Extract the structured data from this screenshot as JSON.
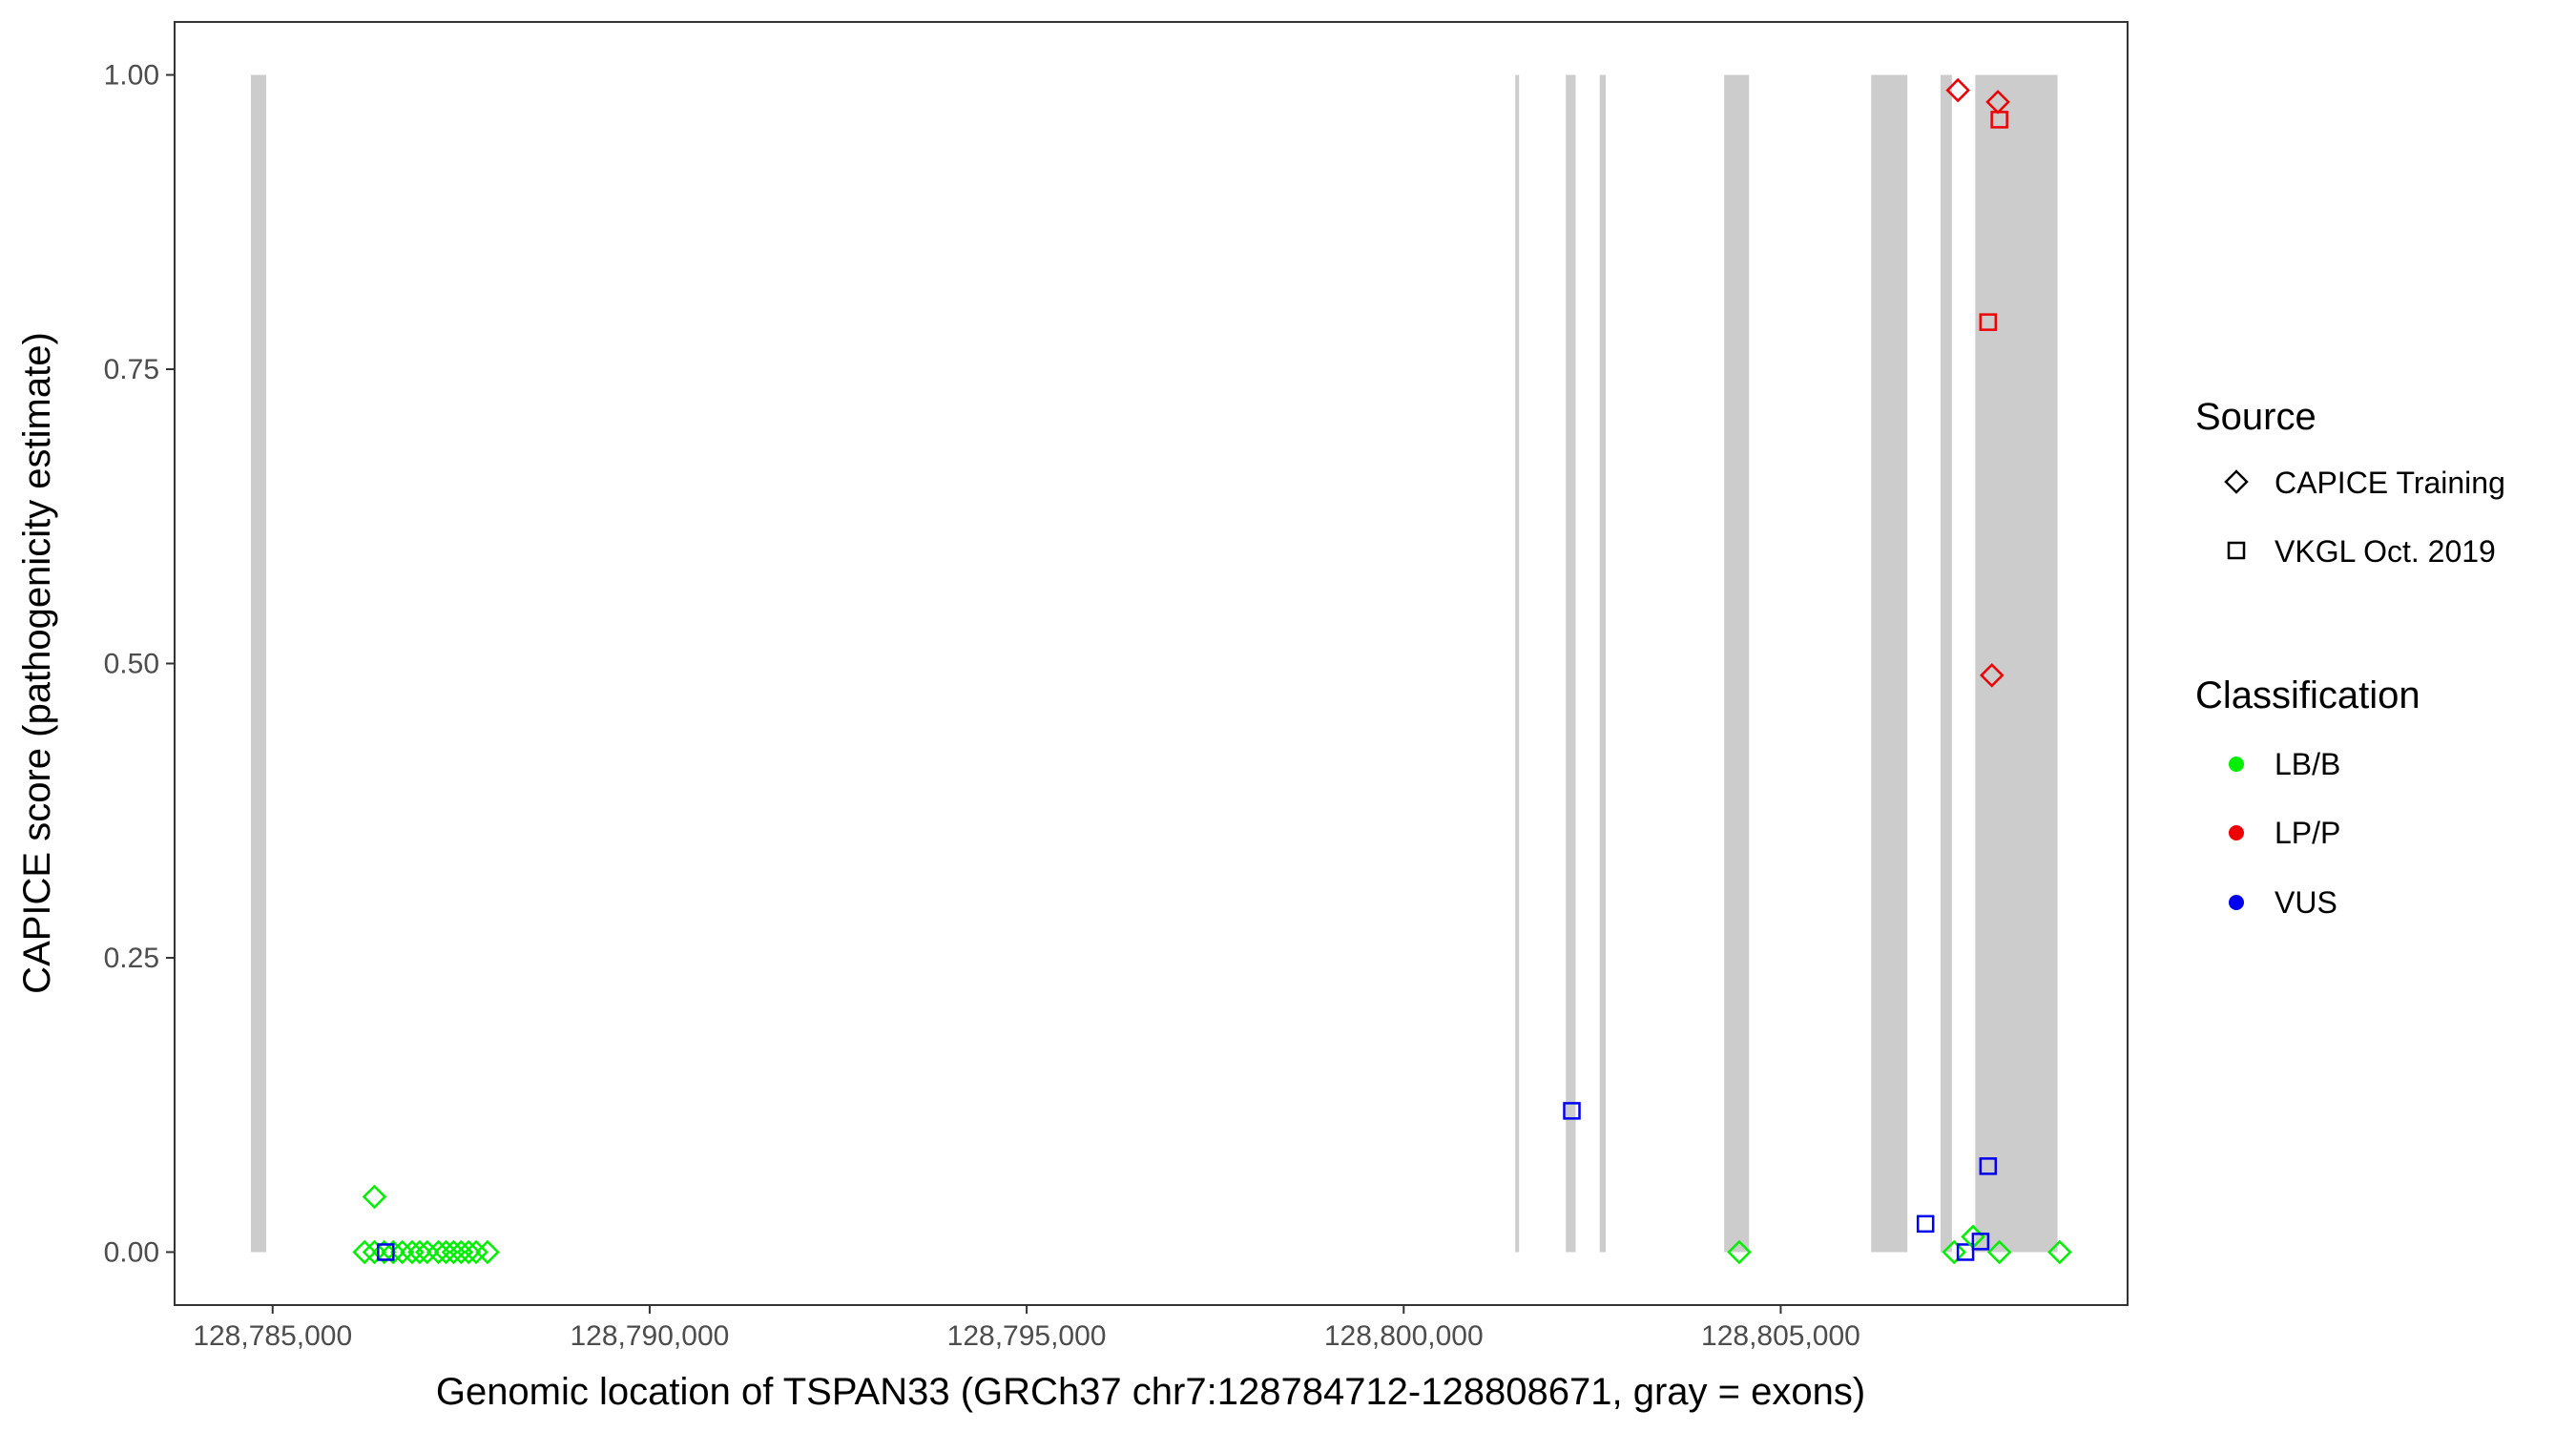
{
  "chart_data": {
    "type": "scatter",
    "xlabel": "Genomic location of TSPAN33 (GRCh37 chr7:128784712-128808671, gray = exons)",
    "ylabel": "CAPICE score (pathogenicity estimate)",
    "xlim": [
      128783700,
      128809600
    ],
    "ylim": [
      -0.045,
      1.045
    ],
    "x_ticks": [
      128785000,
      128790000,
      128795000,
      128800000,
      128805000
    ],
    "x_tick_labels": [
      "128,785,000",
      "128,790,000",
      "128,795,000",
      "128,800,000",
      "128,805,000"
    ],
    "y_ticks": [
      0,
      0.25,
      0.5,
      0.75,
      1.0
    ],
    "y_tick_labels": [
      "0.00",
      "0.25",
      "0.50",
      "0.75",
      "1.00"
    ],
    "grid": false,
    "exons": [
      {
        "start": 128784712,
        "end": 128784915
      },
      {
        "start": 128801480,
        "end": 128801530
      },
      {
        "start": 128802150,
        "end": 128802280
      },
      {
        "start": 128802600,
        "end": 128802680
      },
      {
        "start": 128804250,
        "end": 128804580
      },
      {
        "start": 128806200,
        "end": 128806680
      },
      {
        "start": 128807120,
        "end": 128807270
      },
      {
        "start": 128807580,
        "end": 128808671
      }
    ],
    "legend": {
      "position": "right",
      "source_title": "Source",
      "source_items": [
        {
          "label": "CAPICE Training",
          "shape": "diamond"
        },
        {
          "label": "VKGL Oct. 2019",
          "shape": "square"
        }
      ],
      "class_title": "Classification",
      "class_items": [
        {
          "label": "LB/B",
          "color": "#00ee00"
        },
        {
          "label": "LP/P",
          "color": "#ee0000"
        },
        {
          "label": "VUS",
          "color": "#0000ee"
        }
      ]
    },
    "colors": {
      "LB/B": "#00ee00",
      "LP/P": "#ee0000",
      "VUS": "#0000ee",
      "exon": "#cccccc"
    },
    "points": [
      {
        "x": 128786350,
        "y": 0.047,
        "source": "CAPICE Training",
        "class": "LB/B"
      },
      {
        "x": 128786220,
        "y": 0.0,
        "source": "CAPICE Training",
        "class": "LB/B"
      },
      {
        "x": 128786350,
        "y": 0.0,
        "source": "CAPICE Training",
        "class": "LB/B"
      },
      {
        "x": 128786480,
        "y": 0.0,
        "source": "CAPICE Training",
        "class": "LB/B"
      },
      {
        "x": 128786600,
        "y": 0.0,
        "source": "CAPICE Training",
        "class": "LB/B"
      },
      {
        "x": 128786720,
        "y": 0.0,
        "source": "CAPICE Training",
        "class": "LB/B"
      },
      {
        "x": 128786850,
        "y": 0.0,
        "source": "CAPICE Training",
        "class": "LB/B"
      },
      {
        "x": 128786950,
        "y": 0.0,
        "source": "CAPICE Training",
        "class": "LB/B"
      },
      {
        "x": 128787050,
        "y": 0.0,
        "source": "CAPICE Training",
        "class": "LB/B"
      },
      {
        "x": 128787200,
        "y": 0.0,
        "source": "CAPICE Training",
        "class": "LB/B"
      },
      {
        "x": 128787300,
        "y": 0.0,
        "source": "CAPICE Training",
        "class": "LB/B"
      },
      {
        "x": 128787400,
        "y": 0.0,
        "source": "CAPICE Training",
        "class": "LB/B"
      },
      {
        "x": 128787500,
        "y": 0.0,
        "source": "CAPICE Training",
        "class": "LB/B"
      },
      {
        "x": 128787600,
        "y": 0.0,
        "source": "CAPICE Training",
        "class": "LB/B"
      },
      {
        "x": 128787700,
        "y": 0.0,
        "source": "CAPICE Training",
        "class": "LB/B"
      },
      {
        "x": 128787850,
        "y": 0.0,
        "source": "CAPICE Training",
        "class": "LB/B"
      },
      {
        "x": 128786500,
        "y": 0.0,
        "source": "VKGL Oct. 2019",
        "class": "VUS"
      },
      {
        "x": 128802230,
        "y": 0.12,
        "source": "VKGL Oct. 2019",
        "class": "VUS"
      },
      {
        "x": 128804450,
        "y": 0.0,
        "source": "CAPICE Training",
        "class": "LB/B"
      },
      {
        "x": 128806920,
        "y": 0.024,
        "source": "VKGL Oct. 2019",
        "class": "VUS"
      },
      {
        "x": 128807300,
        "y": 0.0,
        "source": "CAPICE Training",
        "class": "LB/B"
      },
      {
        "x": 128807450,
        "y": 0.0,
        "source": "VKGL Oct. 2019",
        "class": "VUS"
      },
      {
        "x": 128807550,
        "y": 0.013,
        "source": "CAPICE Training",
        "class": "LB/B"
      },
      {
        "x": 128807650,
        "y": 0.009,
        "source": "VKGL Oct. 2019",
        "class": "VUS"
      },
      {
        "x": 128807750,
        "y": 0.073,
        "source": "VKGL Oct. 2019",
        "class": "VUS"
      },
      {
        "x": 128807900,
        "y": 0.0,
        "source": "CAPICE Training",
        "class": "LB/B"
      },
      {
        "x": 128808700,
        "y": 0.0,
        "source": "CAPICE Training",
        "class": "LB/B"
      },
      {
        "x": 128807350,
        "y": 0.987,
        "source": "CAPICE Training",
        "class": "LP/P"
      },
      {
        "x": 128807880,
        "y": 0.977,
        "source": "CAPICE Training",
        "class": "LP/P"
      },
      {
        "x": 128807900,
        "y": 0.962,
        "source": "VKGL Oct. 2019",
        "class": "LP/P"
      },
      {
        "x": 128807750,
        "y": 0.79,
        "source": "VKGL Oct. 2019",
        "class": "LP/P"
      },
      {
        "x": 128807800,
        "y": 0.49,
        "source": "CAPICE Training",
        "class": "LP/P"
      }
    ]
  }
}
